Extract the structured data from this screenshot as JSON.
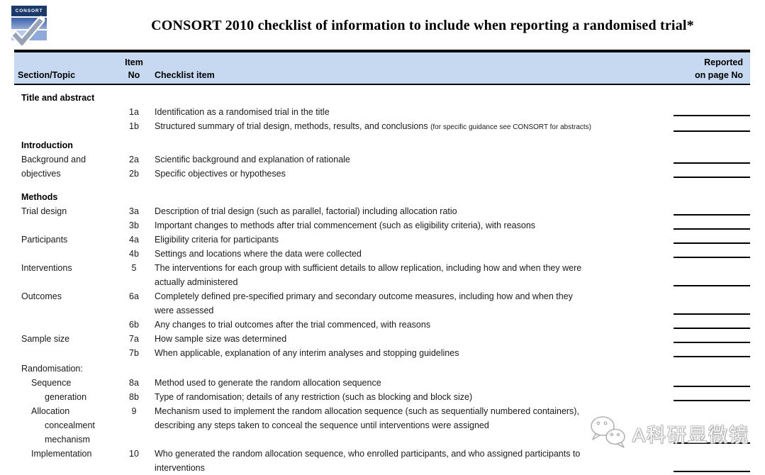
{
  "page": {
    "title": "CONSORT 2010 checklist of information to include when reporting a randomised trial*",
    "logo_text": "CONSORT",
    "watermark_text": "A科研显微镜"
  },
  "colors": {
    "header_bg": "#c6d9f1",
    "border": "#000000",
    "logo_dark_blue": "#1b3a6b",
    "logo_mid_blue": "#3c5fa8",
    "logo_light_blue": "#b7c8ea",
    "watermark_gray": "#b3b3b3"
  },
  "table": {
    "headers": {
      "section": "Section/Topic",
      "item_line1": "Item",
      "item_line2": "No",
      "checklist": "Checklist item",
      "reported_line1": "Reported",
      "reported_line2": "on page No"
    },
    "rows": [
      {
        "kind": "section-heading",
        "label": "Title and abstract"
      },
      {
        "kind": "item",
        "section_lines": [],
        "item_no": "1a",
        "text": "Identification as a randomised trial in the title",
        "note": "",
        "has_line": true
      },
      {
        "kind": "item",
        "section_lines": [],
        "item_no": "1b",
        "text": "Structured summary of trial design, methods, results, and conclusions ",
        "note": "(for specific guidance see CONSORT for abstracts)",
        "has_line": true
      },
      {
        "kind": "section-heading",
        "label": "Introduction"
      },
      {
        "kind": "item",
        "section_lines": [
          {
            "text": "Background and",
            "indent": 0
          }
        ],
        "item_no": "2a",
        "text": "Scientific background and explanation of rationale",
        "note": "",
        "has_line": true
      },
      {
        "kind": "item",
        "section_lines": [
          {
            "text": "objectives",
            "indent": 0
          }
        ],
        "item_no": "2b",
        "text": "Specific objectives or hypotheses",
        "note": "",
        "has_line": true
      },
      {
        "kind": "section-heading",
        "label": "Methods"
      },
      {
        "kind": "item",
        "section_lines": [
          {
            "text": "Trial design",
            "indent": 0
          }
        ],
        "item_no": "3a",
        "text": "Description of trial design (such as parallel, factorial) including allocation ratio",
        "note": "",
        "has_line": true
      },
      {
        "kind": "item",
        "section_lines": [],
        "item_no": "3b",
        "text": "Important changes to methods after trial commencement (such as eligibility criteria), with reasons",
        "note": "",
        "has_line": true
      },
      {
        "kind": "item",
        "section_lines": [
          {
            "text": "Participants",
            "indent": 0
          }
        ],
        "item_no": "4a",
        "text": "Eligibility criteria for participants",
        "note": "",
        "has_line": true
      },
      {
        "kind": "item",
        "section_lines": [],
        "item_no": "4b",
        "text": "Settings and locations where the data were collected",
        "note": "",
        "has_line": true
      },
      {
        "kind": "item",
        "section_lines": [
          {
            "text": "Interventions",
            "indent": 0
          }
        ],
        "item_no": "5",
        "text": "The interventions for each group with sufficient details to allow replication, including how and when they were\nactually administered",
        "note": "",
        "has_line": true
      },
      {
        "kind": "item",
        "section_lines": [
          {
            "text": "Outcomes",
            "indent": 0
          }
        ],
        "item_no": "6a",
        "text": "Completely defined pre-specified primary and secondary outcome measures, including how and when they\nwere assessed",
        "note": "",
        "has_line": true
      },
      {
        "kind": "item",
        "section_lines": [],
        "item_no": "6b",
        "text": "Any changes to trial outcomes after the trial commenced, with reasons",
        "note": "",
        "has_line": true
      },
      {
        "kind": "item",
        "section_lines": [
          {
            "text": "Sample size",
            "indent": 0
          }
        ],
        "item_no": "7a",
        "text": "How sample size was determined",
        "note": "",
        "has_line": true
      },
      {
        "kind": "item",
        "section_lines": [],
        "item_no": "7b",
        "text": "When applicable, explanation of any interim analyses and stopping guidelines",
        "note": "",
        "has_line": true
      },
      {
        "kind": "label",
        "label": "Randomisation:"
      },
      {
        "kind": "item",
        "section_lines": [
          {
            "text": "Sequence",
            "indent": 1
          }
        ],
        "item_no": "8a",
        "text": "Method used to generate the random allocation sequence",
        "note": "",
        "has_line": true
      },
      {
        "kind": "item",
        "section_lines": [
          {
            "text": "generation",
            "indent": 2
          }
        ],
        "item_no": "8b",
        "text": "Type of randomisation; details of any restriction (such as blocking and block size)",
        "note": "",
        "has_line": true
      },
      {
        "kind": "item",
        "section_lines": [
          {
            "text": "Allocation",
            "indent": 1
          },
          {
            "text": "concealment",
            "indent": 2
          },
          {
            "text": "mechanism",
            "indent": 2
          }
        ],
        "item_no": "9",
        "text": "Mechanism used to implement the random allocation sequence (such as sequentially numbered containers),\ndescribing any steps taken to conceal the sequence until interventions were assigned",
        "note": "",
        "has_line": true
      },
      {
        "kind": "item",
        "section_lines": [
          {
            "text": "Implementation",
            "indent": 1
          }
        ],
        "item_no": "10",
        "text": "Who generated the random allocation sequence, who enrolled participants, and who assigned participants to\ninterventions",
        "note": "",
        "has_line": true
      }
    ]
  }
}
